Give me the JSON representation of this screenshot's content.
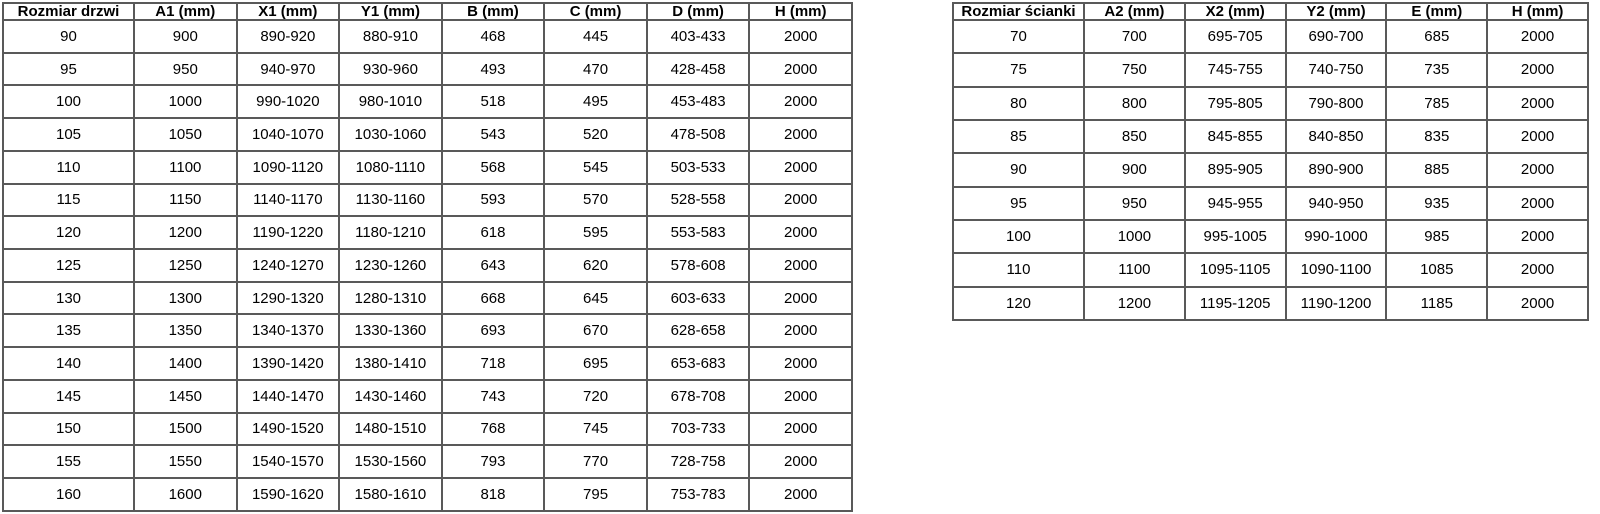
{
  "page": {
    "background_color": "#ffffff",
    "border_color": "#595959",
    "text_color": "#000000"
  },
  "door_table": {
    "headers": [
      "Rozmiar drzwi",
      "A1 (mm)",
      "X1 (mm)",
      "Y1 (mm)",
      "B (mm)",
      "C (mm)",
      "D (mm)",
      "H (mm)"
    ],
    "rows": [
      [
        "90",
        "900",
        "890-920",
        "880-910",
        "468",
        "445",
        "403-433",
        "2000"
      ],
      [
        "95",
        "950",
        "940-970",
        "930-960",
        "493",
        "470",
        "428-458",
        "2000"
      ],
      [
        "100",
        "1000",
        "990-1020",
        "980-1010",
        "518",
        "495",
        "453-483",
        "2000"
      ],
      [
        "105",
        "1050",
        "1040-1070",
        "1030-1060",
        "543",
        "520",
        "478-508",
        "2000"
      ],
      [
        "110",
        "1100",
        "1090-1120",
        "1080-1110",
        "568",
        "545",
        "503-533",
        "2000"
      ],
      [
        "115",
        "1150",
        "1140-1170",
        "1130-1160",
        "593",
        "570",
        "528-558",
        "2000"
      ],
      [
        "120",
        "1200",
        "1190-1220",
        "1180-1210",
        "618",
        "595",
        "553-583",
        "2000"
      ],
      [
        "125",
        "1250",
        "1240-1270",
        "1230-1260",
        "643",
        "620",
        "578-608",
        "2000"
      ],
      [
        "130",
        "1300",
        "1290-1320",
        "1280-1310",
        "668",
        "645",
        "603-633",
        "2000"
      ],
      [
        "135",
        "1350",
        "1340-1370",
        "1330-1360",
        "693",
        "670",
        "628-658",
        "2000"
      ],
      [
        "140",
        "1400",
        "1390-1420",
        "1380-1410",
        "718",
        "695",
        "653-683",
        "2000"
      ],
      [
        "145",
        "1450",
        "1440-1470",
        "1430-1460",
        "743",
        "720",
        "678-708",
        "2000"
      ],
      [
        "150",
        "1500",
        "1490-1520",
        "1480-1510",
        "768",
        "745",
        "703-733",
        "2000"
      ],
      [
        "155",
        "1550",
        "1540-1570",
        "1530-1560",
        "793",
        "770",
        "728-758",
        "2000"
      ],
      [
        "160",
        "1600",
        "1590-1620",
        "1580-1610",
        "818",
        "795",
        "753-783",
        "2000"
      ]
    ]
  },
  "wall_table": {
    "headers": [
      "Rozmiar ścianki",
      "A2 (mm)",
      "X2 (mm)",
      "Y2 (mm)",
      "E (mm)",
      "H (mm)"
    ],
    "rows": [
      [
        "70",
        "700",
        "695-705",
        "690-700",
        "685",
        "2000"
      ],
      [
        "75",
        "750",
        "745-755",
        "740-750",
        "735",
        "2000"
      ],
      [
        "80",
        "800",
        "795-805",
        "790-800",
        "785",
        "2000"
      ],
      [
        "85",
        "850",
        "845-855",
        "840-850",
        "835",
        "2000"
      ],
      [
        "90",
        "900",
        "895-905",
        "890-900",
        "885",
        "2000"
      ],
      [
        "95",
        "950",
        "945-955",
        "940-950",
        "935",
        "2000"
      ],
      [
        "100",
        "1000",
        "995-1005",
        "990-1000",
        "985",
        "2000"
      ],
      [
        "110",
        "1100",
        "1095-1105",
        "1090-1100",
        "1085",
        "2000"
      ],
      [
        "120",
        "1200",
        "1195-1205",
        "1190-1200",
        "1185",
        "2000"
      ]
    ]
  }
}
